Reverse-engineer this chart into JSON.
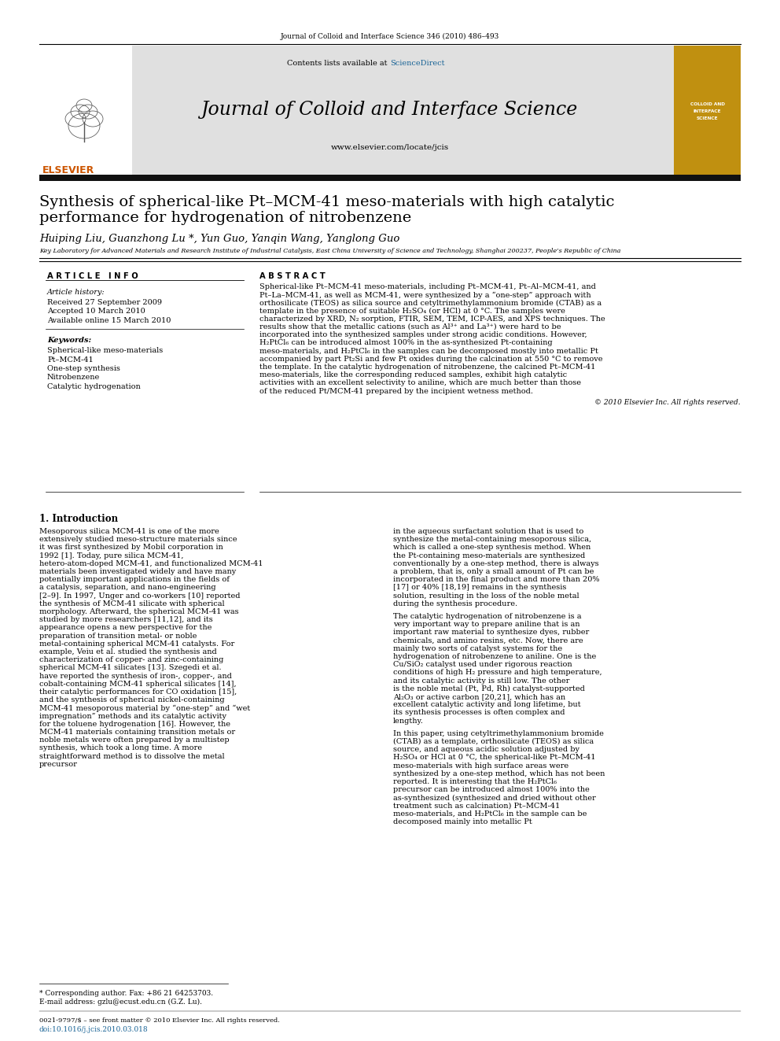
{
  "journal_ref": "Journal of Colloid and Interface Science 346 (2010) 486–493",
  "contents_text": "Contents lists available at ",
  "sciencedirect": "ScienceDirect",
  "journal_name": "Journal of Colloid and Interface Science",
  "journal_url": "www.elsevier.com/locate/jcis",
  "elsevier_color": "#cc5500",
  "sd_color": "#1a6496",
  "header_bg": "#e0e0e0",
  "black_bar": "#111111",
  "title_line1": "Synthesis of spherical-like Pt–MCM-41 meso-materials with high catalytic",
  "title_line2": "performance for hydrogenation of nitrobenzene",
  "authors": "Huiping Liu, Guanzhong Lu *, Yun Guo, Yanqin Wang, Yanglong Guo",
  "affiliation": "Key Laboratory for Advanced Materials and Research Institute of Industrial Catalysis, East China University of Science and Technology, Shanghai 200237, People’s Republic of China",
  "article_info_header": "A R T I C L E   I N F O",
  "abstract_header": "A B S T R A C T",
  "art_history_label": "Article history:",
  "received": "Received 27 September 2009",
  "accepted": "Accepted 10 March 2010",
  "available": "Available online 15 March 2010",
  "keywords_label": "Keywords:",
  "keywords": [
    "Spherical-like meso-materials",
    "Pt–MCM-41",
    "One-step synthesis",
    "Nitrobenzene",
    "Catalytic hydrogenation"
  ],
  "abstract": "Spherical-like Pt–MCM-41 meso-materials, including Pt–MCM-41, Pt–Al–MCM-41, and Pt–La–MCM-41, as well as MCM-41, were synthesized by a “one-step” approach with orthosilicate (TEOS) as silica source and cetyltrimethylammonium bromide (CTAB) as a template in the presence of suitable H₂SO₄ (or HCl) at 0 °C. The samples were characterized by XRD, N₂ sorption, FTIR, SEM, TEM, ICP-AES, and XPS techniques. The results show that the metallic cations (such as Al³⁺ and La³⁺) were hard to be incorporated into the synthesized samples under strong acidic conditions. However, H₂PtCl₆ can be introduced almost 100% in the as-synthesized Pt-containing meso-materials, and H₂PtCl₆ in the samples can be decomposed mostly into metallic Pt accompanied by part Pt₂Si and few Pt oxides during the calcination at 550 °C to remove the template. In the catalytic hydrogenation of nitrobenzene, the calcined Pt–MCM-41 meso-materials, like the corresponding reduced samples, exhibit high catalytic activities with an excellent selectivity to aniline, which are much better than those of the reduced Pt/MCM-41 prepared by the incipient wetness method.",
  "copyright": "© 2010 Elsevier Inc. All rights reserved.",
  "section1": "1. Introduction",
  "col1_para": "    Mesoporous silica MCM-41 is one of the more extensively studied meso-structure materials since it was first synthesized by Mobil corporation in 1992 [1]. Today, pure silica MCM-41, hetero-atom-doped MCM-41, and functionalized MCM-41 materials been investigated widely and have many potentially important applications in the fields of a catalysis, separation, and nano-engineering [2–9]. In 1997, Unger and co-workers [10] reported the synthesis of MCM-41 silicate with spherical morphology. Afterward, the spherical MCM-41 was studied by more researchers [11,12], and its appearance opens a new perspective for the preparation of transition metal- or noble metal-containing spherical MCM-41 catalysts. For example, Veiu et al. studied the synthesis and characterization of copper- and zinc-containing spherical MCM-41 silicates [13]. Szegedi et al. have reported the synthesis of iron-, copper-, and cobalt-containing MCM-41 spherical silicates [14], their catalytic performances for CO oxidation [15], and the synthesis of spherical nickel-containing MCM-41 mesoporous material by “one-step” and “wet impregnation” methods and its catalytic activity for the toluene hydrogenation [16]. However, the MCM-41 materials containing transition metals or noble metals were often prepared by a multistep synthesis, which took a long time. A more straightforward method is to dissolve the metal precursor",
  "col2_para1": "in the aqueous surfactant solution that is used to synthesize the metal-containing mesoporous silica, which is called a one-step synthesis method. When the Pt-containing meso-materials are synthesized conventionally by a one-step method, there is always a problem, that is, only a small amount of Pt can be incorporated in the final product and more than 20% [17] or 40% [18,19] remains in the synthesis solution, resulting in the loss of the noble metal during the synthesis procedure.",
  "col2_para2": "    The catalytic hydrogenation of nitrobenzene is a very important way to prepare aniline that is an important raw material to synthesize dyes, rubber chemicals, and amino resins, etc. Now, there are mainly two sorts of catalyst systems for the hydrogenation of nitrobenzene to aniline. One is the Cu/SiO₂ catalyst used under rigorous reaction conditions of high H₂ pressure and high temperature, and its catalytic activity is still low. The other is the noble metal (Pt, Pd, Rh) catalyst-supported Al₂O₃ or active carbon [20,21], which has an excellent catalytic activity and long lifetime, but its synthesis processes is often complex and lengthy.",
  "col2_para3": "    In this paper, using cetyltrimethylammonium bromide (CTAB) as a template, orthosilicate (TEOS) as silica source, and aqueous acidic solution adjusted by H₂SO₄ or HCl at 0 °C, the spherical-like Pt–MCM-41 meso-materials with high surface areas were synthesized by a one-step method, which has not been reported. It is interesting that the H₂PtCl₆ precursor can be introduced almost 100% into the as-synthesized (synthesized and dried without other treatment such as calcination) Pt–MCM-41 meso-materials, and H₂PtCl₆ in the sample can be decomposed mainly into metallic Pt",
  "footnote1": "* Corresponding author. Fax: +86 21 64253703.",
  "footnote2": "E-mail address: gzlu@ecust.edu.cn (G.Z. Lu).",
  "footer1": "0021-9797/$ – see front matter © 2010 Elsevier Inc. All rights reserved.",
  "footer2": "doi:10.1016/j.jcis.2010.03.018",
  "link_color": "#1a6496",
  "page_bg": "#ffffff"
}
